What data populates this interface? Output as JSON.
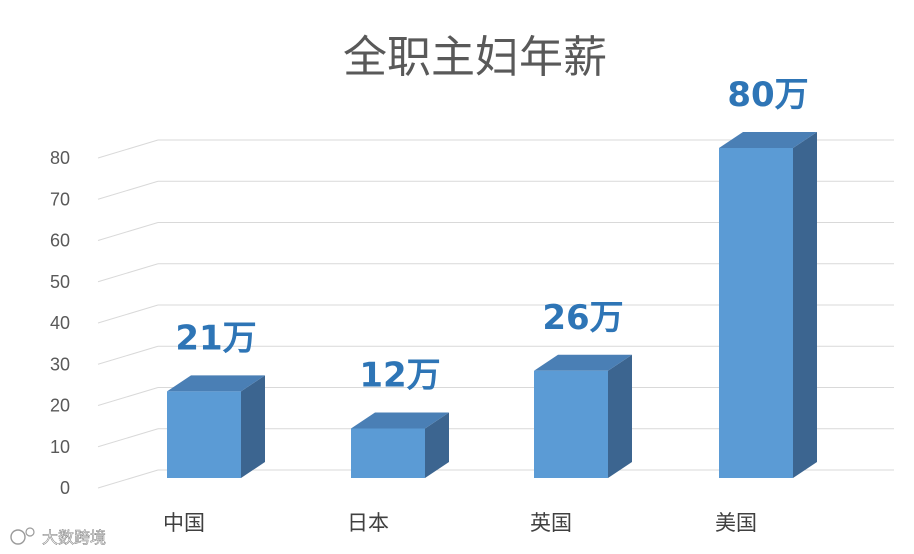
{
  "chart_data": {
    "type": "bar",
    "title": "全职主妇年薪",
    "categories": [
      "中国",
      "日本",
      "英国",
      "美国"
    ],
    "values": [
      21,
      12,
      26,
      80
    ],
    "data_labels": [
      "21万",
      "12万",
      "26万",
      "80万"
    ],
    "ylim": [
      0,
      80
    ],
    "yticks": [
      "0",
      "10",
      "20",
      "30",
      "40",
      "50",
      "60",
      "70",
      "80"
    ],
    "grid": true,
    "style": "3d-column",
    "colors": {
      "front": "#5b9bd5",
      "top": "#4a7fb5",
      "side": "#3c6590",
      "label": "#2e75b6"
    }
  },
  "watermark": {
    "text": "大数跨境"
  }
}
